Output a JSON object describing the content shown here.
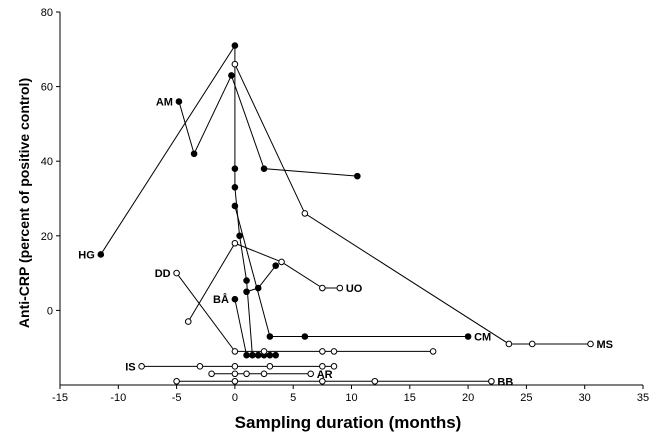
{
  "chart_data": {
    "type": "scatter",
    "xlabel": "Sampling duration (months)",
    "ylabel": "Anti-CRP (percent of positive control)",
    "xlim": [
      -15,
      35
    ],
    "ylim": [
      -20,
      80
    ],
    "xticks": [
      -15,
      -10,
      -5,
      0,
      5,
      10,
      15,
      20,
      25,
      30,
      35
    ],
    "yticks": [
      0,
      20,
      40,
      60,
      80
    ],
    "grid": false,
    "legend": "none",
    "series": [
      {
        "name": "AM",
        "marker": "filled",
        "label_at": "start",
        "x": [
          -4.8,
          -3.5,
          -0.3,
          2.5,
          10.5
        ],
        "y": [
          56,
          42,
          63,
          38,
          36
        ]
      },
      {
        "name": "HG",
        "marker": "filled",
        "label_at": "start",
        "x": [
          -11.5,
          0,
          0,
          0,
          0.4,
          1,
          1.5,
          2,
          2.5,
          3
        ],
        "y": [
          15,
          71,
          38,
          33,
          20,
          8,
          -12,
          -12,
          -12,
          -12
        ]
      },
      {
        "name": "BÅ",
        "marker": "filled",
        "label_at": "start",
        "x": [
          0,
          1,
          2,
          3.5
        ],
        "y": [
          3,
          -12,
          -12,
          -12
        ]
      },
      {
        "name": "",
        "marker": "filled",
        "label_at": "none",
        "x": [
          1,
          2,
          3.5
        ],
        "y": [
          5,
          6,
          12
        ]
      },
      {
        "name": "CM",
        "marker": "filled",
        "label_at": "end",
        "x": [
          0,
          3,
          6,
          20
        ],
        "y": [
          28,
          -7,
          -7,
          -7
        ]
      },
      {
        "name": "MS",
        "marker": "open",
        "label_at": "end",
        "x": [
          0,
          6,
          23.5,
          25.5,
          30.5
        ],
        "y": [
          66,
          26,
          -9,
          -9,
          -9
        ]
      },
      {
        "name": "UO",
        "marker": "open",
        "label_at": "end",
        "x": [
          -4,
          0,
          4,
          7.5,
          9
        ],
        "y": [
          -3,
          18,
          13,
          6,
          6
        ]
      },
      {
        "name": "DD",
        "marker": "open",
        "label_at": "start",
        "x": [
          -5,
          0,
          2.5,
          7.5,
          8.5,
          17
        ],
        "y": [
          10,
          -11,
          -11,
          -11,
          -11,
          -11
        ]
      },
      {
        "name": "IS",
        "marker": "open",
        "label_at": "start",
        "x": [
          -8,
          -3,
          0,
          3,
          7.5,
          8.5
        ],
        "y": [
          -15,
          -15,
          -15,
          -15,
          -15,
          -15
        ]
      },
      {
        "name": "AR",
        "marker": "open",
        "label_at": "end",
        "x": [
          -2,
          0,
          1,
          2.5,
          6.5
        ],
        "y": [
          -17,
          -17,
          -17,
          -17,
          -17
        ]
      },
      {
        "name": "BB",
        "marker": "open",
        "label_at": "end",
        "x": [
          -5,
          0,
          7.5,
          12,
          22
        ],
        "y": [
          -19,
          -19,
          -19,
          -19,
          -19
        ]
      }
    ]
  }
}
